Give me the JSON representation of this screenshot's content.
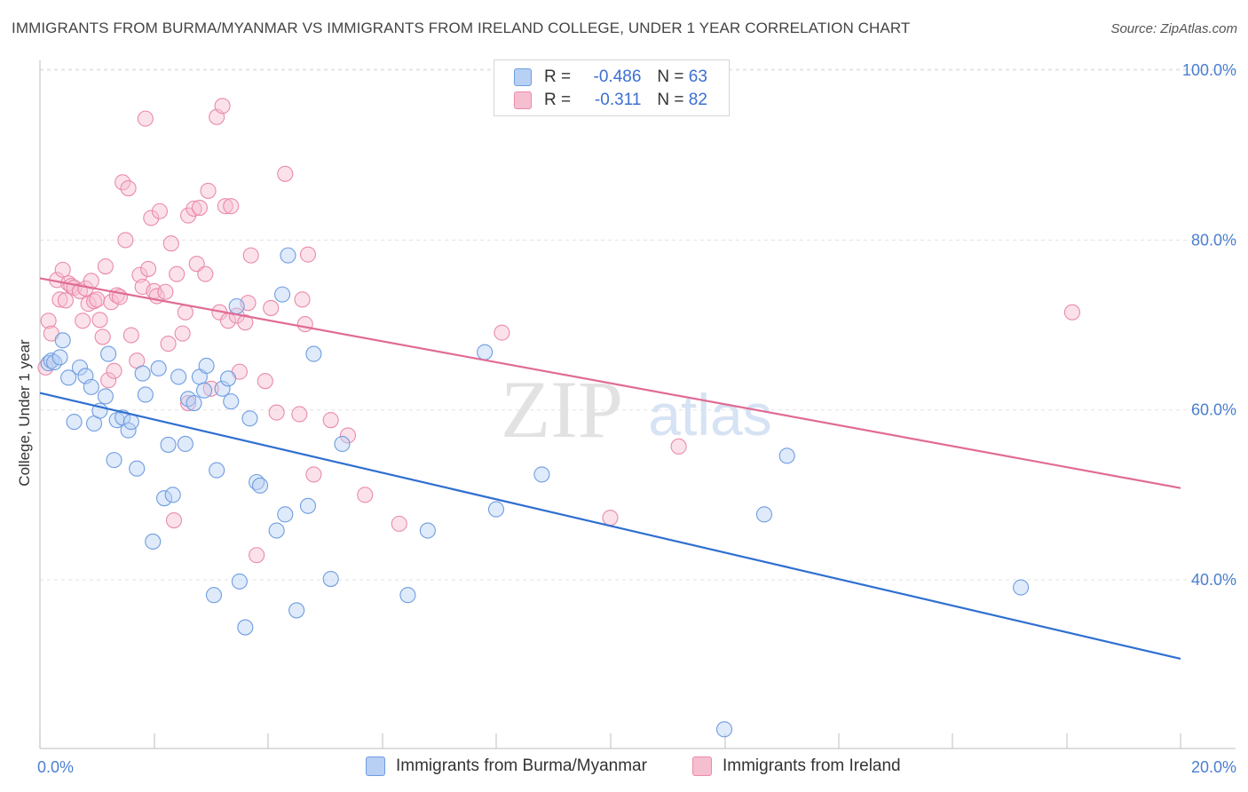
{
  "header": {
    "title": "IMMIGRANTS FROM BURMA/MYANMAR VS IMMIGRANTS FROM IRELAND COLLEGE, UNDER 1 YEAR CORRELATION CHART",
    "source": "Source: ZipAtlas.com"
  },
  "watermark": {
    "zip": "ZIP",
    "atlas": "atlas"
  },
  "legend": {
    "rows": [
      {
        "r_label": "R =",
        "r_value": "-0.486",
        "n_label": "N =",
        "n_value": "63"
      },
      {
        "r_label": "R =",
        "r_value": "-0.311",
        "n_label": "N =",
        "n_value": "82"
      }
    ]
  },
  "bottom_legend": {
    "series1": "Immigrants from Burma/Myanmar",
    "series2": "Immigrants from Ireland"
  },
  "colors": {
    "blue_fill": "#b7d0f3",
    "blue_stroke": "#6f9de0",
    "blue_line": "#2f6fd0",
    "pink_fill": "#f6bfd0",
    "pink_stroke": "#ea8aaa",
    "pink_line": "#e06b95",
    "axis_text": "#4a7fd0"
  },
  "chart_data": {
    "type": "scatter",
    "title": "IMMIGRANTS FROM BURMA/MYANMAR VS IMMIGRANTS FROM IRELAND COLLEGE, UNDER 1 YEAR CORRELATION CHART",
    "xlabel": "",
    "ylabel": "College, Under 1 year",
    "xlim": [
      0,
      20
    ],
    "ylim": [
      20,
      103
    ],
    "x_tick_labels": [
      "0.0%",
      "20.0%"
    ],
    "y_ticks": [
      40,
      60,
      80,
      100
    ],
    "y_tick_labels": [
      "40.0%",
      "60.0%",
      "80.0%",
      "100.0%"
    ],
    "grid": true,
    "legend_position": "top-center",
    "series": [
      {
        "name": "Immigrants from Burma/Myanmar",
        "color": "#6f9de0",
        "points": [
          [
            0.15,
            65.5
          ],
          [
            0.2,
            65.8
          ],
          [
            0.25,
            65.6
          ],
          [
            0.35,
            66.2
          ],
          [
            0.4,
            68.2
          ],
          [
            0.5,
            63.8
          ],
          [
            0.6,
            58.6
          ],
          [
            0.7,
            65.0
          ],
          [
            0.8,
            64.0
          ],
          [
            0.9,
            62.7
          ],
          [
            0.95,
            58.4
          ],
          [
            1.05,
            59.9
          ],
          [
            1.15,
            61.6
          ],
          [
            1.2,
            66.6
          ],
          [
            1.3,
            54.1
          ],
          [
            1.35,
            58.8
          ],
          [
            1.45,
            59.1
          ],
          [
            1.55,
            57.6
          ],
          [
            1.6,
            58.6
          ],
          [
            1.7,
            53.1
          ],
          [
            1.8,
            64.3
          ],
          [
            1.85,
            61.8
          ],
          [
            1.98,
            44.5
          ],
          [
            2.08,
            64.9
          ],
          [
            2.18,
            49.6
          ],
          [
            2.25,
            55.9
          ],
          [
            2.33,
            50.0
          ],
          [
            2.43,
            63.9
          ],
          [
            2.55,
            56.0
          ],
          [
            2.6,
            61.3
          ],
          [
            2.7,
            60.8
          ],
          [
            2.8,
            63.9
          ],
          [
            2.88,
            62.3
          ],
          [
            2.92,
            65.2
          ],
          [
            3.05,
            38.2
          ],
          [
            3.1,
            52.9
          ],
          [
            3.2,
            62.5
          ],
          [
            3.3,
            63.7
          ],
          [
            3.35,
            61.0
          ],
          [
            3.45,
            72.2
          ],
          [
            3.5,
            39.8
          ],
          [
            3.6,
            34.4
          ],
          [
            3.68,
            59.0
          ],
          [
            3.8,
            51.5
          ],
          [
            3.86,
            51.1
          ],
          [
            4.15,
            45.8
          ],
          [
            4.25,
            73.6
          ],
          [
            4.3,
            47.7
          ],
          [
            4.35,
            78.2
          ],
          [
            4.5,
            36.4
          ],
          [
            4.7,
            48.7
          ],
          [
            4.8,
            66.6
          ],
          [
            5.3,
            56.0
          ],
          [
            5.1,
            40.1
          ],
          [
            6.45,
            38.2
          ],
          [
            6.8,
            45.8
          ],
          [
            7.8,
            66.8
          ],
          [
            8.0,
            48.3
          ],
          [
            8.8,
            52.4
          ],
          [
            12.0,
            22.4
          ],
          [
            12.7,
            47.7
          ],
          [
            13.1,
            54.6
          ],
          [
            17.2,
            39.1
          ]
        ],
        "trend": {
          "x": [
            0,
            20
          ],
          "y": [
            62.0,
            30.7
          ]
        }
      },
      {
        "name": "Immigrants from Ireland",
        "color": "#ea8aaa",
        "points": [
          [
            0.1,
            65.0
          ],
          [
            0.15,
            70.5
          ],
          [
            0.2,
            69.0
          ],
          [
            0.3,
            75.3
          ],
          [
            0.35,
            73.0
          ],
          [
            0.4,
            76.5
          ],
          [
            0.45,
            72.9
          ],
          [
            0.5,
            74.9
          ],
          [
            0.55,
            74.6
          ],
          [
            0.6,
            74.4
          ],
          [
            0.7,
            74.0
          ],
          [
            0.75,
            70.5
          ],
          [
            0.8,
            74.3
          ],
          [
            0.85,
            72.5
          ],
          [
            0.9,
            75.2
          ],
          [
            0.95,
            72.8
          ],
          [
            1.0,
            73.0
          ],
          [
            1.05,
            70.6
          ],
          [
            1.1,
            68.6
          ],
          [
            1.15,
            76.9
          ],
          [
            1.2,
            63.5
          ],
          [
            1.25,
            72.7
          ],
          [
            1.3,
            64.6
          ],
          [
            1.35,
            73.5
          ],
          [
            1.4,
            73.3
          ],
          [
            1.45,
            86.8
          ],
          [
            1.5,
            80.0
          ],
          [
            1.55,
            86.1
          ],
          [
            1.6,
            68.8
          ],
          [
            1.7,
            65.8
          ],
          [
            1.75,
            75.9
          ],
          [
            1.8,
            74.5
          ],
          [
            1.85,
            94.3
          ],
          [
            1.9,
            76.6
          ],
          [
            1.95,
            82.6
          ],
          [
            2.0,
            74.0
          ],
          [
            2.05,
            73.4
          ],
          [
            2.1,
            83.4
          ],
          [
            2.2,
            73.9
          ],
          [
            2.25,
            67.8
          ],
          [
            2.3,
            79.6
          ],
          [
            2.35,
            47.0
          ],
          [
            2.4,
            76.0
          ],
          [
            2.5,
            69.0
          ],
          [
            2.55,
            71.5
          ],
          [
            2.6,
            82.9
          ],
          [
            2.7,
            83.7
          ],
          [
            2.75,
            77.2
          ],
          [
            2.8,
            83.8
          ],
          [
            2.9,
            76.0
          ],
          [
            2.95,
            85.8
          ],
          [
            3.0,
            62.5
          ],
          [
            3.1,
            94.5
          ],
          [
            3.15,
            71.5
          ],
          [
            3.2,
            95.8
          ],
          [
            3.25,
            84.0
          ],
          [
            3.3,
            70.5
          ],
          [
            3.35,
            84.0
          ],
          [
            3.45,
            71.1
          ],
          [
            3.5,
            64.5
          ],
          [
            3.6,
            70.3
          ],
          [
            3.65,
            72.6
          ],
          [
            3.7,
            78.2
          ],
          [
            3.8,
            42.9
          ],
          [
            3.95,
            63.4
          ],
          [
            4.05,
            72.0
          ],
          [
            4.15,
            59.7
          ],
          [
            4.3,
            87.8
          ],
          [
            4.55,
            59.5
          ],
          [
            4.6,
            73.0
          ],
          [
            4.65,
            70.1
          ],
          [
            4.7,
            78.3
          ],
          [
            4.8,
            52.4
          ],
          [
            5.1,
            58.8
          ],
          [
            5.4,
            57.0
          ],
          [
            5.7,
            50.0
          ],
          [
            6.3,
            46.6
          ],
          [
            8.1,
            69.1
          ],
          [
            10.0,
            47.3
          ],
          [
            11.2,
            55.7
          ],
          [
            18.1,
            71.5
          ],
          [
            2.6,
            60.8
          ]
        ],
        "trend": {
          "x": [
            0,
            20
          ],
          "y": [
            75.5,
            50.8
          ]
        }
      }
    ]
  }
}
